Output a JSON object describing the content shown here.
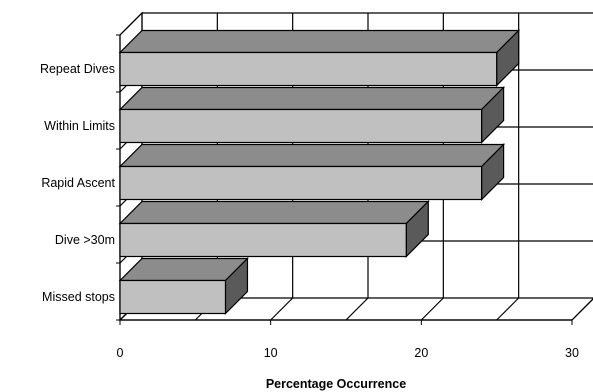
{
  "chart_data": {
    "type": "bar",
    "orientation": "horizontal",
    "three_d": true,
    "categories": [
      "Repeat Dives",
      "Within Limits",
      "Rapid Ascent",
      "Dive >30m",
      "Missed stops"
    ],
    "values": [
      25,
      24,
      24,
      19,
      7
    ],
    "xlabel": "Percentage Occurrence",
    "ylabel": "",
    "xlim": [
      0,
      30
    ],
    "xticks": [
      "0",
      "10",
      "20",
      "30"
    ],
    "grid": true,
    "legend": "none",
    "colors": {
      "bar_front": "#c0c0c0",
      "bar_top": "#8c8c8c",
      "bar_side": "#5a5a5a",
      "floor": "#ffffff",
      "grid": "#000000"
    }
  }
}
